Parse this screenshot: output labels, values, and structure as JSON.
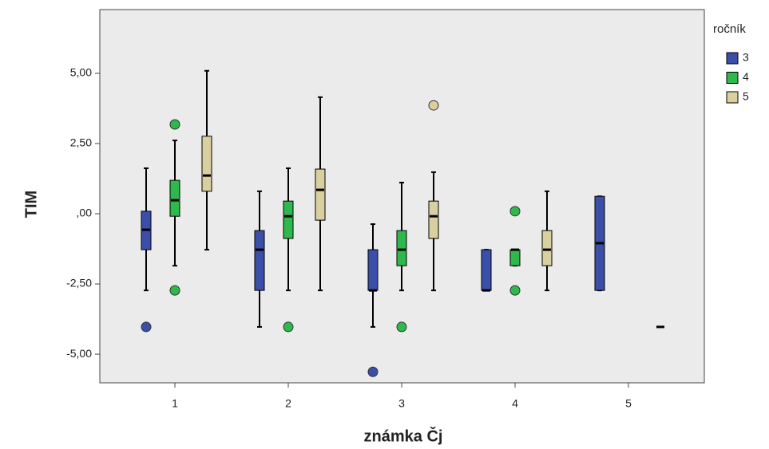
{
  "chart_data": {
    "type": "boxplot",
    "x_label": "známka Čj",
    "y_label": "TIM",
    "legend_title": "ročník",
    "categories": [
      "1",
      "2",
      "3",
      "4",
      "5"
    ],
    "ylim": [
      -6.02,
      7.27
    ],
    "yticks": [
      {
        "value": 5,
        "label": "5,00"
      },
      {
        "value": 2.5,
        "label": "2,50"
      },
      {
        "value": 0,
        "label": ",00"
      },
      {
        "value": -2.5,
        "label": "-2,50"
      },
      {
        "value": -5,
        "label": "-5,00"
      }
    ],
    "series": [
      {
        "name": "3",
        "color": "#3b4fa8",
        "boxes": [
          {
            "min": -2.73,
            "q1": -1.28,
            "median": -0.57,
            "q3": 0.09,
            "max": 1.62,
            "outliers": [
              -4.03
            ]
          },
          {
            "min": -4.03,
            "q1": -2.73,
            "median": -1.28,
            "q3": -0.6,
            "max": 0.8,
            "outliers": []
          },
          {
            "min": -4.03,
            "q1": -2.73,
            "median": -2.73,
            "q3": -1.28,
            "max": -0.37,
            "outliers": [
              -5.63
            ]
          },
          {
            "min": -2.73,
            "q1": -2.73,
            "median": -2.73,
            "q3": -1.28,
            "max": -1.28,
            "outliers": []
          },
          {
            "min": -2.73,
            "q1": -2.73,
            "median": -1.05,
            "q3": 0.62,
            "max": 0.62,
            "outliers": []
          }
        ]
      },
      {
        "name": "4",
        "color": "#2fb84b",
        "boxes": [
          {
            "min": -1.85,
            "q1": -0.09,
            "median": 0.48,
            "q3": 1.19,
            "max": 2.61,
            "outliers": [
              3.18,
              -2.73
            ]
          },
          {
            "min": -2.73,
            "q1": -0.88,
            "median": -0.09,
            "q3": 0.45,
            "max": 1.62,
            "outliers": [
              -4.03
            ]
          },
          {
            "min": -2.73,
            "q1": -1.85,
            "median": -1.28,
            "q3": -0.6,
            "max": 1.11,
            "outliers": [
              -4.03
            ]
          },
          {
            "min": -1.85,
            "q1": -1.85,
            "median": -1.28,
            "q3": -1.28,
            "max": -1.28,
            "outliers": [
              0.09,
              -2.73
            ]
          },
          null
        ]
      },
      {
        "name": "5",
        "color": "#d9cf9f",
        "boxes": [
          {
            "min": -1.28,
            "q1": 0.8,
            "median": 1.36,
            "q3": 2.76,
            "max": 5.09,
            "outliers": []
          },
          {
            "min": -2.73,
            "q1": -0.23,
            "median": 0.85,
            "q3": 1.59,
            "max": 4.15,
            "outliers": []
          },
          {
            "min": -2.73,
            "q1": -0.88,
            "median": -0.09,
            "q3": 0.45,
            "max": 1.48,
            "outliers": [
              3.86
            ]
          },
          {
            "min": -2.73,
            "q1": -1.85,
            "median": -1.28,
            "q3": -0.6,
            "max": 0.8,
            "outliers": []
          },
          {
            "min": -4.03,
            "q1": -4.03,
            "median": -4.03,
            "q3": -4.03,
            "max": -4.03,
            "outliers": []
          }
        ]
      }
    ]
  }
}
